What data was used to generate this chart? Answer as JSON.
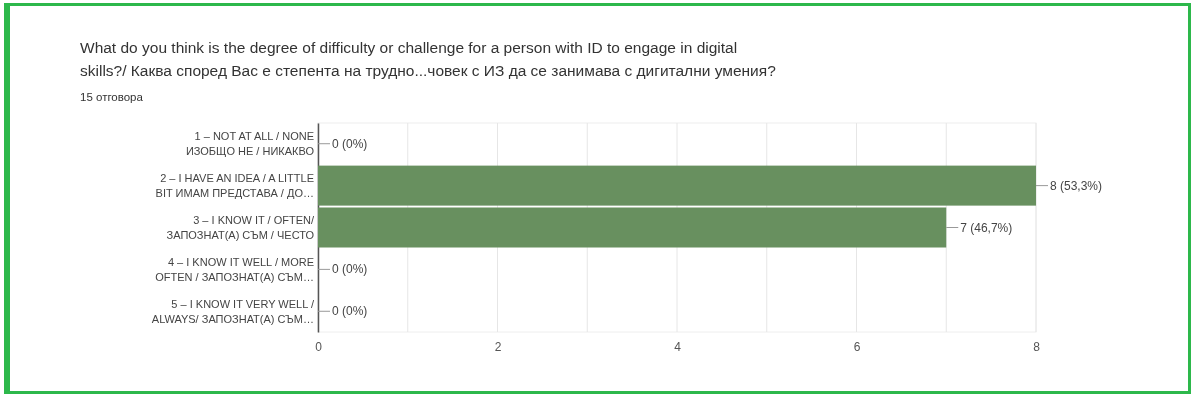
{
  "chart_data": {
    "type": "bar",
    "orientation": "horizontal",
    "title": "What do you think is the degree of difficulty or challenge for a person with ID to engage in digital\nskills?/ Каква според Вас е степента на трудно...човек с ИЗ да се занимава с дигитални умения?",
    "subtitle": "15 отговора",
    "categories": [
      "1 – NOT AT ALL / NONE\nИЗОБЩО НЕ / НИКАКВО",
      "2 – I HAVE AN IDEA / A LITTLE\nBIT ИМАМ ПРЕДСТАВА / ДО…",
      "3 – I KNOW IT / OFTEN/\nЗАПОЗНАТ(А) СЪМ / ЧЕСТО",
      "4 – I KNOW IT WELL / MORE\nOFTEN / ЗАПОЗНАТ(А) СЪМ…",
      "5 – I KNOW IT VERY WELL /\nALWAYS/ ЗАПОЗНАТ(А) СЪМ…"
    ],
    "values": [
      0,
      8,
      7,
      0,
      0
    ],
    "value_labels": [
      "0 (0%)",
      "8 (53,3%)",
      "7 (46,7%)",
      "0 (0%)",
      "0 (0%)"
    ],
    "color": "#68905f",
    "xlim": [
      0,
      8
    ],
    "xticks": [
      0,
      {
        "value": 1,
        "label": null
      },
      2,
      {
        "value": 3,
        "label": null
      },
      4,
      {
        "value": 5,
        "label": null
      },
      6,
      {
        "value": 7,
        "label": null
      },
      8
    ],
    "grid": "x"
  }
}
